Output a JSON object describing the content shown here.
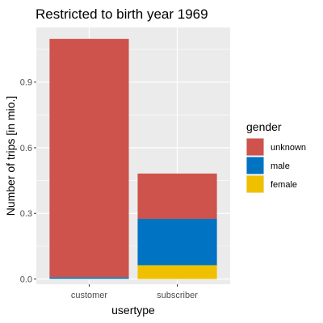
{
  "chart_data": {
    "type": "bar",
    "stacked": true,
    "title": "Restricted to birth year 1969",
    "xlabel": "usertype",
    "ylabel": "Number of trips [in mio.]",
    "categories": [
      "customer",
      "subscriber"
    ],
    "ylim": [
      -0.024,
      1.15
    ],
    "yticks": [
      0.0,
      0.3,
      0.6,
      0.9
    ],
    "ytick_labels": [
      "0.0",
      "0.3",
      "0.6",
      "0.9"
    ],
    "grid": true,
    "legend_position": "right",
    "legend_title": "gender",
    "series": [
      {
        "name": "female",
        "color": "#efc000",
        "values": [
          0.001,
          0.063
        ]
      },
      {
        "name": "male",
        "color": "#0073c2",
        "values": [
          0.007,
          0.212
        ]
      },
      {
        "name": "unknown",
        "color": "#cd534c",
        "values": [
          1.09,
          0.207
        ]
      }
    ],
    "legend_order": [
      "unknown",
      "male",
      "female"
    ],
    "panel_background": "#ebebeb",
    "grid_color": "#ffffff"
  }
}
